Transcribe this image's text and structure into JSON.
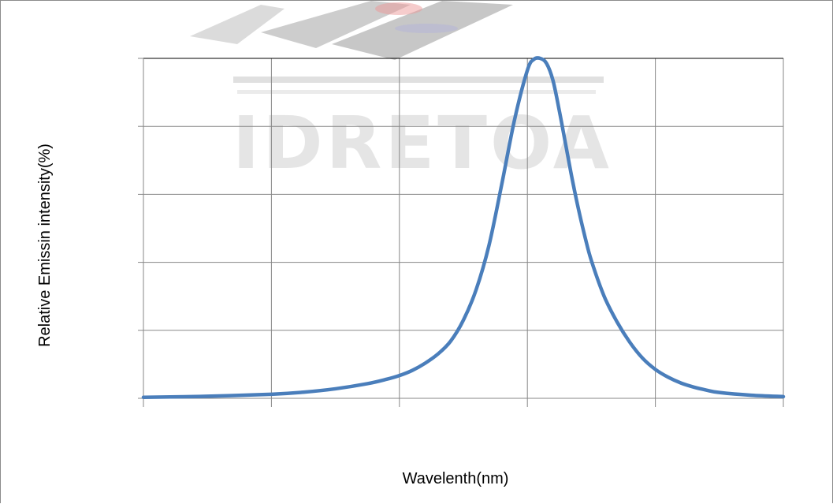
{
  "chart_data": {
    "type": "line",
    "title": "",
    "xlabel": "Wavelenth(nm)",
    "ylabel": "Relative Emissin intensity(%)",
    "x_tick_labels": [],
    "y_tick_labels": [],
    "xlim": [
      0,
      100
    ],
    "ylim": [
      0,
      100
    ],
    "grid": true,
    "legend": "none",
    "colors": {
      "line": "#4a7ebb",
      "grid": "#878787",
      "axis": "#000000"
    },
    "series": [
      {
        "x": [
          0,
          10,
          20,
          25,
          30,
          35,
          38,
          40,
          42,
          44,
          46,
          48,
          50,
          52,
          54,
          56,
          58,
          60,
          61,
          62,
          63,
          64,
          65,
          66,
          67,
          68,
          69,
          70,
          72,
          74,
          76,
          78,
          80,
          82,
          84,
          86,
          88,
          90,
          95,
          100
        ],
        "values": [
          0.3,
          0.6,
          1.2,
          1.8,
          2.8,
          4.3,
          5.6,
          6.7,
          8.2,
          10.3,
          13.0,
          16.8,
          23.0,
          32.0,
          45.0,
          63.0,
          82.0,
          96.5,
          99.7,
          100,
          98.5,
          93.5,
          84.5,
          74.5,
          64.5,
          55.5,
          47.5,
          40.5,
          30.0,
          22.5,
          16.5,
          11.8,
          8.5,
          6.2,
          4.5,
          3.3,
          2.4,
          1.7,
          0.9,
          0.5
        ]
      }
    ]
  },
  "watermark": {
    "text": "IDRETOA"
  }
}
